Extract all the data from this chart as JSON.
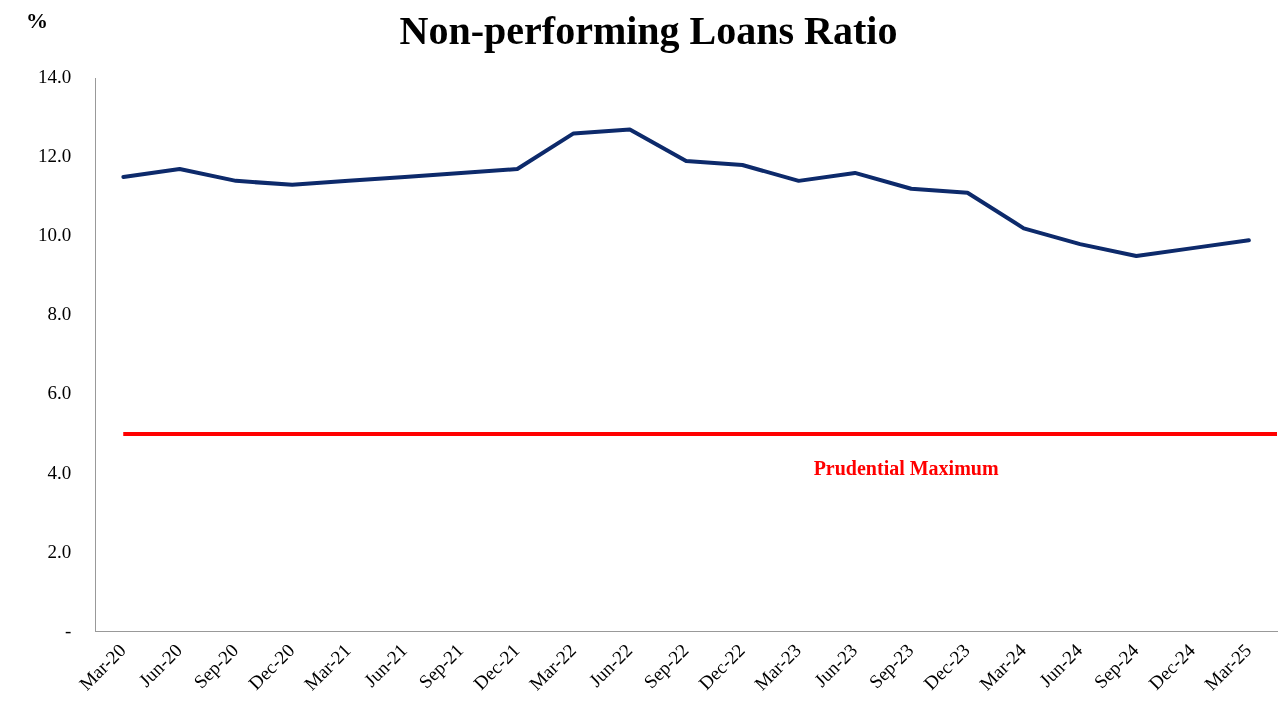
{
  "chart_data": {
    "type": "line",
    "title": "Non-performing Loans Ratio",
    "ylabel": "%",
    "categories": [
      "Mar-20",
      "Jun-20",
      "Sep-20",
      "Dec-20",
      "Mar-21",
      "Jun-21",
      "Sep-21",
      "Dec-21",
      "Mar-22",
      "Jun-22",
      "Sep-22",
      "Dec-22",
      "Mar-23",
      "Jun-23",
      "Sep-23",
      "Dec-23",
      "Mar-24",
      "Jun-24",
      "Sep-24",
      "Dec-24",
      "Mar-25"
    ],
    "series": [
      {
        "color": "#0d2a6b",
        "values": [
          11.5,
          11.7,
          11.4,
          11.3,
          11.4,
          11.5,
          11.6,
          11.7,
          12.6,
          12.7,
          11.9,
          11.8,
          11.4,
          11.6,
          11.2,
          11.1,
          10.2,
          9.8,
          9.5,
          9.7,
          9.9
        ]
      }
    ],
    "ylim": [
      0,
      14
    ],
    "yticks": [
      {
        "value": 0,
        "label": "-"
      },
      {
        "value": 2,
        "label": "2.0"
      },
      {
        "value": 4,
        "label": "4.0"
      },
      {
        "value": 6,
        "label": "6.0"
      },
      {
        "value": 8,
        "label": "8.0"
      },
      {
        "value": 10,
        "label": "10.0"
      },
      {
        "value": 12,
        "label": "12.0"
      },
      {
        "value": 14,
        "label": "14.0"
      }
    ],
    "ref_lines": [
      {
        "axis": "y",
        "value": 5,
        "label": "Prudential Maximum",
        "color": "#ff0000"
      }
    ],
    "grid": false,
    "legend": false,
    "marker": "none",
    "line_style": "solid"
  }
}
